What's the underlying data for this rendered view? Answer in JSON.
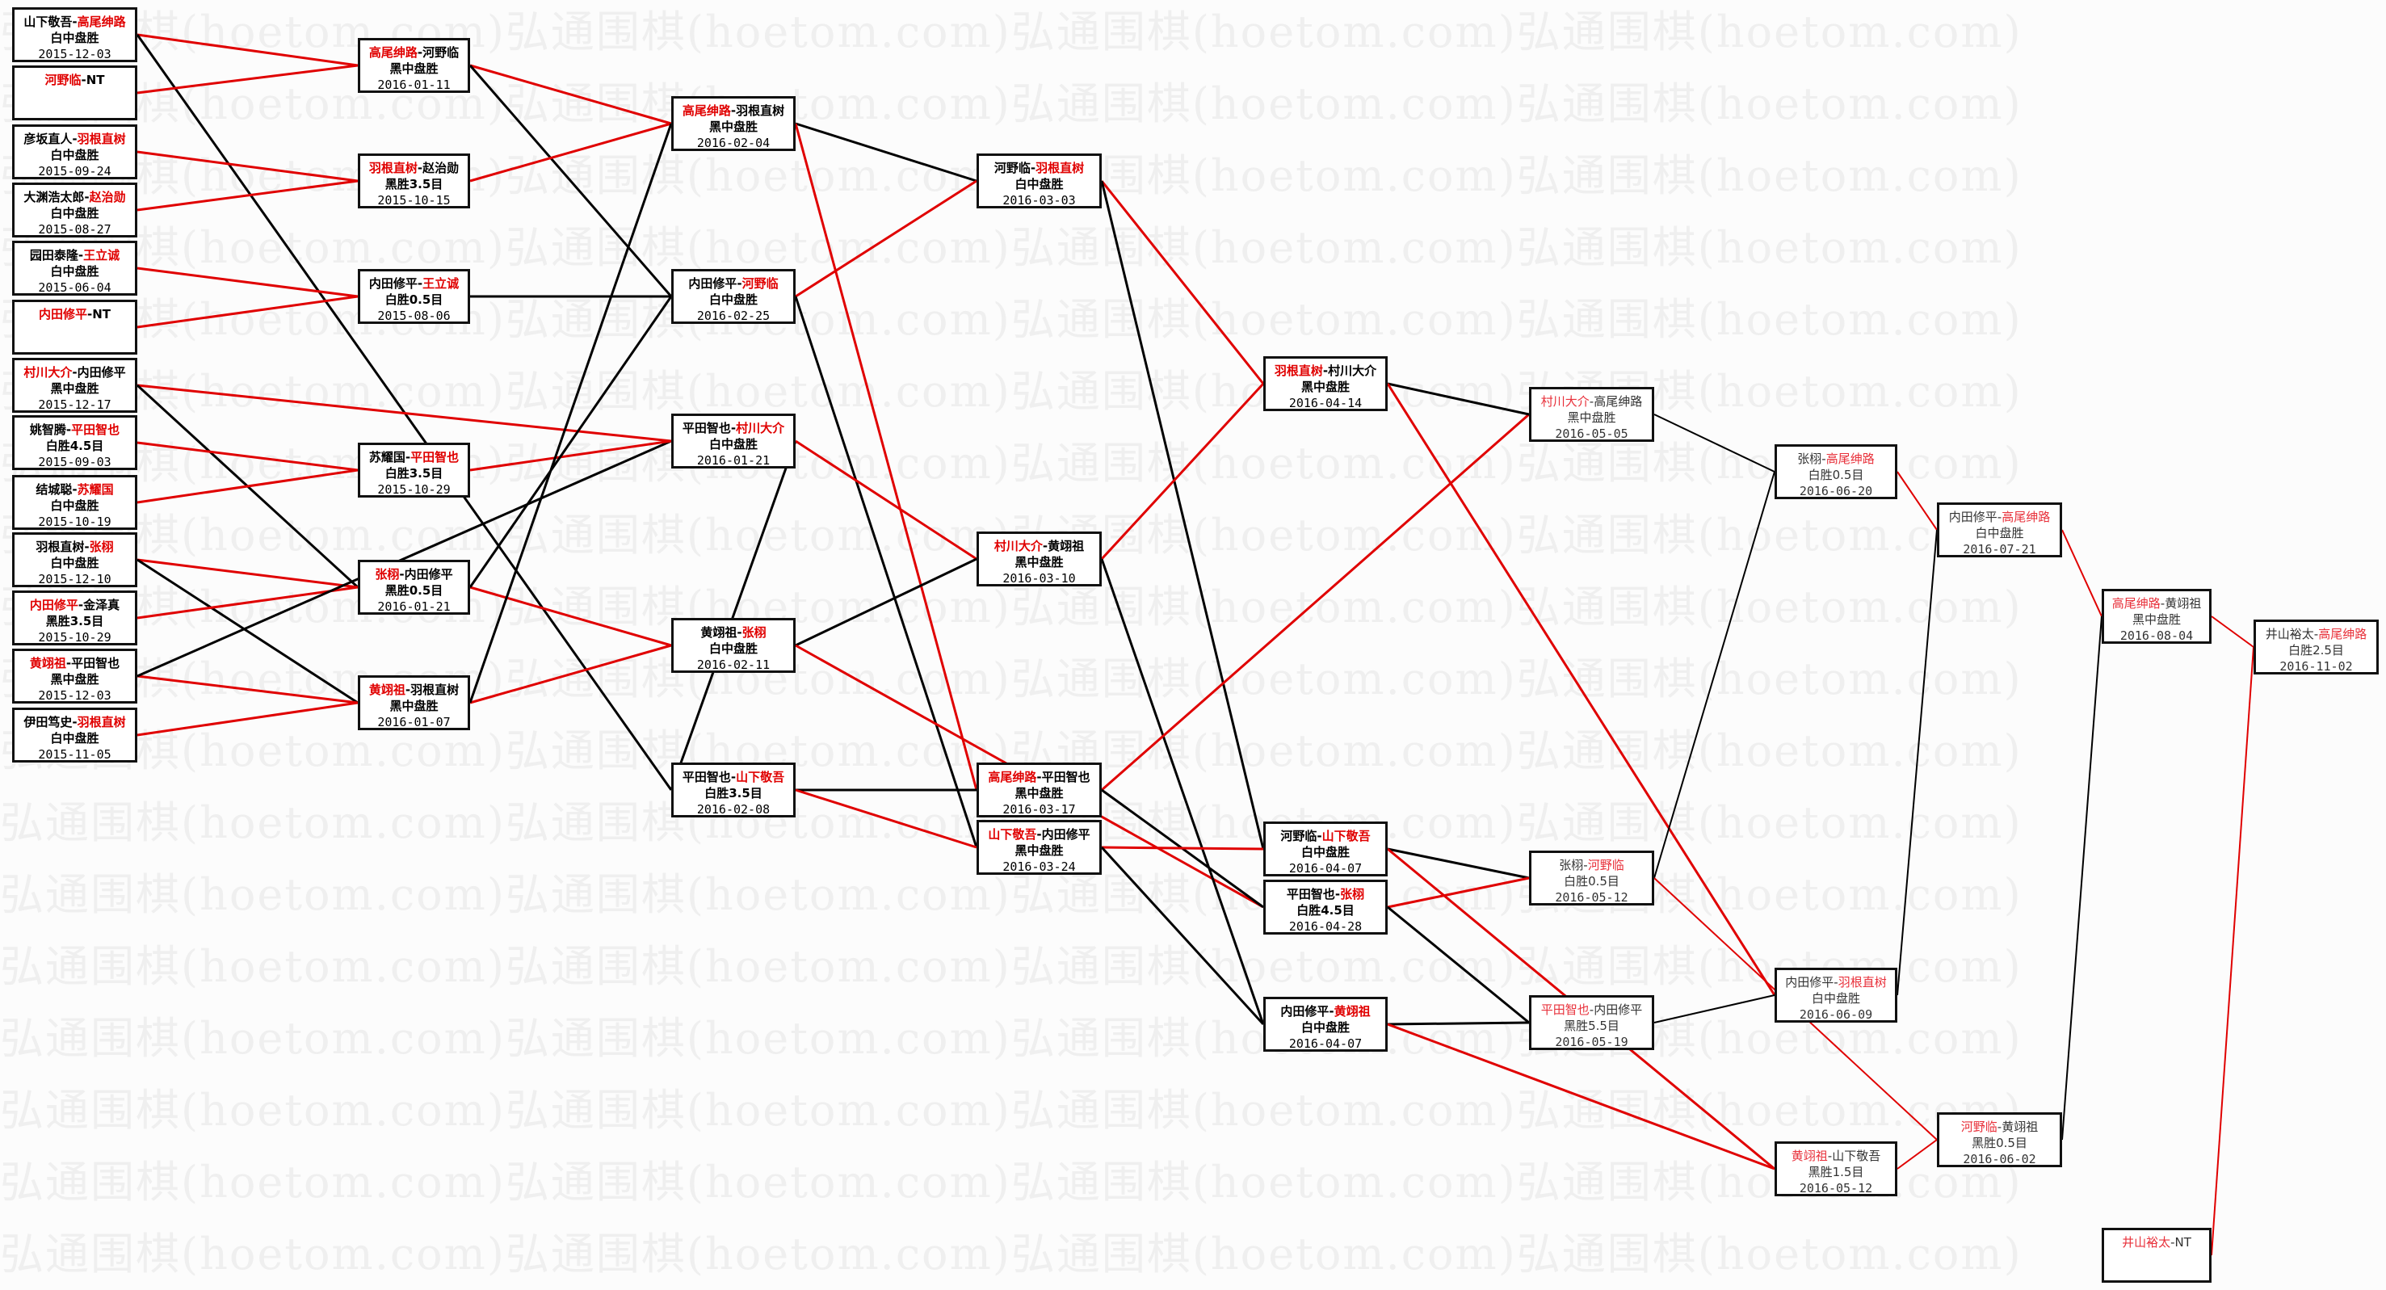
{
  "watermark": "弘通围棋(hoetom.com)",
  "colors": {
    "win_line": "#e00000",
    "loss_line": "#000000",
    "winner_name": "#e00000"
  },
  "games": [
    {
      "id": "a1",
      "p1": "山下敬吾",
      "p2": "高尾绅路",
      "red": 2,
      "result": "白中盘胜",
      "date": "2015-12-03"
    },
    {
      "id": "a2",
      "p1": "河野临",
      "p2": "NT",
      "red": 1,
      "result": "",
      "date": ""
    },
    {
      "id": "a3",
      "p1": "彦坂直人",
      "p2": "羽根直树",
      "red": 2,
      "result": "白中盘胜",
      "date": "2015-09-24"
    },
    {
      "id": "a4",
      "p1": "大渊浩太郎",
      "p2": "赵治勋",
      "red": 2,
      "result": "白中盘胜",
      "date": "2015-08-27"
    },
    {
      "id": "a5",
      "p1": "园田泰隆",
      "p2": "王立诚",
      "red": 2,
      "result": "白中盘胜",
      "date": "2015-06-04"
    },
    {
      "id": "a6",
      "p1": "内田修平",
      "p2": "NT",
      "red": 1,
      "result": "",
      "date": ""
    },
    {
      "id": "a7",
      "p1": "村川大介",
      "p2": "内田修平",
      "red": 1,
      "result": "黑中盘胜",
      "date": "2015-12-17"
    },
    {
      "id": "a8",
      "p1": "姚智腾",
      "p2": "平田智也",
      "red": 2,
      "result": "白胜4.5目",
      "date": "2015-09-03"
    },
    {
      "id": "a9",
      "p1": "结城聪",
      "p2": "苏耀国",
      "red": 2,
      "result": "白中盘胜",
      "date": "2015-10-19"
    },
    {
      "id": "a10",
      "p1": "羽根直树",
      "p2": "张栩",
      "red": 2,
      "result": "白中盘胜",
      "date": "2015-12-10"
    },
    {
      "id": "a11",
      "p1": "内田修平",
      "p2": "金泽真",
      "red": 1,
      "result": "黑胜3.5目",
      "date": "2015-10-29"
    },
    {
      "id": "a12",
      "p1": "黄翊祖",
      "p2": "平田智也",
      "red": 1,
      "result": "黑中盘胜",
      "date": "2015-12-03"
    },
    {
      "id": "a13",
      "p1": "伊田笃史",
      "p2": "羽根直树",
      "red": 2,
      "result": "白中盘胜",
      "date": "2015-11-05"
    },
    {
      "id": "b1",
      "p1": "高尾绅路",
      "p2": "河野临",
      "red": 1,
      "result": "黑中盘胜",
      "date": "2016-01-11"
    },
    {
      "id": "b2",
      "p1": "羽根直树",
      "p2": "赵治勋",
      "red": 1,
      "result": "黑胜3.5目",
      "date": "2015-10-15"
    },
    {
      "id": "b3",
      "p1": "内田修平",
      "p2": "王立诚",
      "red": 2,
      "result": "白胜0.5目",
      "date": "2015-08-06"
    },
    {
      "id": "b4",
      "p1": "苏耀国",
      "p2": "平田智也",
      "red": 2,
      "result": "白胜3.5目",
      "date": "2015-10-29"
    },
    {
      "id": "b5",
      "p1": "张栩",
      "p2": "内田修平",
      "red": 1,
      "result": "黑胜0.5目",
      "date": "2016-01-21"
    },
    {
      "id": "b6",
      "p1": "黄翊祖",
      "p2": "羽根直树",
      "red": 1,
      "result": "黑中盘胜",
      "date": "2016-01-07"
    },
    {
      "id": "c1",
      "p1": "高尾绅路",
      "p2": "羽根直树",
      "red": 1,
      "result": "黑中盘胜",
      "date": "2016-02-04"
    },
    {
      "id": "c2",
      "p1": "内田修平",
      "p2": "河野临",
      "red": 2,
      "result": "白中盘胜",
      "date": "2016-02-25"
    },
    {
      "id": "c3",
      "p1": "平田智也",
      "p2": "村川大介",
      "red": 2,
      "result": "白中盘胜",
      "date": "2016-01-21"
    },
    {
      "id": "c4",
      "p1": "黄翊祖",
      "p2": "张栩",
      "red": 2,
      "result": "白中盘胜",
      "date": "2016-02-11"
    },
    {
      "id": "c5",
      "p1": "平田智也",
      "p2": "山下敬吾",
      "red": 2,
      "result": "白胜3.5目",
      "date": "2016-02-08"
    },
    {
      "id": "d1",
      "p1": "河野临",
      "p2": "羽根直树",
      "red": 2,
      "result": "白中盘胜",
      "date": "2016-03-03"
    },
    {
      "id": "d2",
      "p1": "村川大介",
      "p2": "黄翊祖",
      "red": 1,
      "result": "黑中盘胜",
      "date": "2016-03-10"
    },
    {
      "id": "d3",
      "p1": "高尾绅路",
      "p2": "平田智也",
      "red": 1,
      "result": "黑中盘胜",
      "date": "2016-03-17"
    },
    {
      "id": "d4",
      "p1": "山下敬吾",
      "p2": "内田修平",
      "red": 1,
      "result": "黑中盘胜",
      "date": "2016-03-24"
    },
    {
      "id": "e1",
      "p1": "羽根直树",
      "p2": "村川大介",
      "red": 1,
      "result": "黑中盘胜",
      "date": "2016-04-14"
    },
    {
      "id": "e2",
      "p1": "河野临",
      "p2": "山下敬吾",
      "red": 2,
      "result": "白中盘胜",
      "date": "2016-04-07"
    },
    {
      "id": "e3",
      "p1": "平田智也",
      "p2": "张栩",
      "red": 2,
      "result": "白胜4.5目",
      "date": "2016-04-28"
    },
    {
      "id": "e4",
      "p1": "内田修平",
      "p2": "黄翊祖",
      "red": 2,
      "result": "白中盘胜",
      "date": "2016-04-07"
    },
    {
      "id": "f1",
      "p1": "村川大介",
      "p2": "高尾绅路",
      "red": 1,
      "result": "黑中盘胜",
      "date": "2016-05-05"
    },
    {
      "id": "f2",
      "p1": "张栩",
      "p2": "河野临",
      "red": 2,
      "result": "白胜0.5目",
      "date": "2016-05-12"
    },
    {
      "id": "f3",
      "p1": "平田智也",
      "p2": "内田修平",
      "red": 1,
      "result": "黑胜5.5目",
      "date": "2016-05-19"
    },
    {
      "id": "g1",
      "p1": "张栩",
      "p2": "高尾绅路",
      "red": 2,
      "result": "白胜0.5目",
      "date": "2016-06-20"
    },
    {
      "id": "g2",
      "p1": "内田修平",
      "p2": "羽根直树",
      "red": 2,
      "result": "白中盘胜",
      "date": "2016-06-09"
    },
    {
      "id": "g3",
      "p1": "黄翊祖",
      "p2": "山下敬吾",
      "red": 1,
      "result": "黑胜1.5目",
      "date": "2016-05-12"
    },
    {
      "id": "h1",
      "p1": "内田修平",
      "p2": "高尾绅路",
      "red": 2,
      "result": "白中盘胜",
      "date": "2016-07-21"
    },
    {
      "id": "h2",
      "p1": "河野临",
      "p2": "黄翊祖",
      "red": 1,
      "result": "黑胜0.5目",
      "date": "2016-06-02"
    },
    {
      "id": "i1",
      "p1": "高尾绅路",
      "p2": "黄翊祖",
      "red": 1,
      "result": "黑中盘胜",
      "date": "2016-08-04"
    },
    {
      "id": "i2",
      "p1": "井山裕太",
      "p2": "NT",
      "red": 1,
      "result": "",
      "date": ""
    },
    {
      "id": "j1",
      "p1": "井山裕太",
      "p2": "高尾绅路",
      "red": 2,
      "result": "白胜2.5目",
      "date": "2016-11-02"
    }
  ],
  "links": [
    {
      "from": "a1",
      "to": "b1",
      "color": "red"
    },
    {
      "from": "a1",
      "to": "c5",
      "color": "black"
    },
    {
      "from": "a2",
      "to": "b1",
      "color": "red"
    },
    {
      "from": "a3",
      "to": "b2",
      "color": "red"
    },
    {
      "from": "a4",
      "to": "b2",
      "color": "red"
    },
    {
      "from": "a5",
      "to": "b3",
      "color": "red"
    },
    {
      "from": "a6",
      "to": "b3",
      "color": "red"
    },
    {
      "from": "a7",
      "to": "c3",
      "color": "red"
    },
    {
      "from": "a7",
      "to": "b5",
      "color": "black"
    },
    {
      "from": "a8",
      "to": "b4",
      "color": "red"
    },
    {
      "from": "a9",
      "to": "b4",
      "color": "red"
    },
    {
      "from": "a10",
      "to": "b5",
      "color": "red"
    },
    {
      "from": "a10",
      "to": "b6",
      "color": "black"
    },
    {
      "from": "a11",
      "to": "b5",
      "color": "red"
    },
    {
      "from": "a12",
      "to": "b6",
      "color": "red"
    },
    {
      "from": "a12",
      "to": "c3",
      "color": "black"
    },
    {
      "from": "a13",
      "to": "b6",
      "color": "red"
    },
    {
      "from": "b1",
      "to": "c1",
      "color": "red"
    },
    {
      "from": "b1",
      "to": "c2",
      "color": "black"
    },
    {
      "from": "b2",
      "to": "c1",
      "color": "red"
    },
    {
      "from": "b3",
      "to": "c2",
      "color": "black"
    },
    {
      "from": "b4",
      "to": "c3",
      "color": "red"
    },
    {
      "from": "b5",
      "to": "c4",
      "color": "red"
    },
    {
      "from": "b5",
      "to": "c2",
      "color": "black"
    },
    {
      "from": "b6",
      "to": "c4",
      "color": "red"
    },
    {
      "from": "b6",
      "to": "c1",
      "color": "black"
    },
    {
      "from": "c3",
      "to": "c5",
      "color": "black"
    },
    {
      "from": "c1",
      "to": "d1",
      "color": "black"
    },
    {
      "from": "c1",
      "to": "d3",
      "color": "red"
    },
    {
      "from": "c2",
      "to": "d1",
      "color": "red"
    },
    {
      "from": "c2",
      "to": "d4",
      "color": "black"
    },
    {
      "from": "c3",
      "to": "d2",
      "color": "red"
    },
    {
      "from": "c4",
      "to": "d2",
      "color": "black"
    },
    {
      "from": "c4",
      "to": "e3",
      "color": "red"
    },
    {
      "from": "c5",
      "to": "d3",
      "color": "black"
    },
    {
      "from": "c5",
      "to": "d4",
      "color": "red"
    },
    {
      "from": "d1",
      "to": "e1",
      "color": "red"
    },
    {
      "from": "d1",
      "to": "e2",
      "color": "black"
    },
    {
      "from": "d2",
      "to": "e1",
      "color": "red"
    },
    {
      "from": "d2",
      "to": "e4",
      "color": "black"
    },
    {
      "from": "d3",
      "to": "f1",
      "color": "red"
    },
    {
      "from": "d3",
      "to": "e3",
      "color": "black"
    },
    {
      "from": "d4",
      "to": "e2",
      "color": "red"
    },
    {
      "from": "d4",
      "to": "e4",
      "color": "black"
    },
    {
      "from": "e1",
      "to": "f1",
      "color": "black"
    },
    {
      "from": "e1",
      "to": "g2",
      "color": "red"
    },
    {
      "from": "e2",
      "to": "f2",
      "color": "black"
    },
    {
      "from": "e2",
      "to": "g3",
      "color": "red"
    },
    {
      "from": "e3",
      "to": "f2",
      "color": "red"
    },
    {
      "from": "e3",
      "to": "f3",
      "color": "black"
    },
    {
      "from": "e4",
      "to": "f3",
      "color": "black"
    },
    {
      "from": "e4",
      "to": "g3",
      "color": "red"
    },
    {
      "from": "f1",
      "to": "g1",
      "color": "black"
    },
    {
      "from": "f2",
      "to": "g1",
      "color": "black"
    },
    {
      "from": "f2",
      "to": "h2",
      "color": "red"
    },
    {
      "from": "f3",
      "to": "g2",
      "color": "black"
    },
    {
      "from": "g1",
      "to": "h1",
      "color": "red"
    },
    {
      "from": "g2",
      "to": "h1",
      "color": "black"
    },
    {
      "from": "g3",
      "to": "h2",
      "color": "red"
    },
    {
      "from": "h1",
      "to": "i1",
      "color": "red"
    },
    {
      "from": "h2",
      "to": "i1",
      "color": "black"
    },
    {
      "from": "i1",
      "to": "j1",
      "color": "red"
    },
    {
      "from": "i2",
      "to": "j1",
      "color": "red"
    }
  ]
}
